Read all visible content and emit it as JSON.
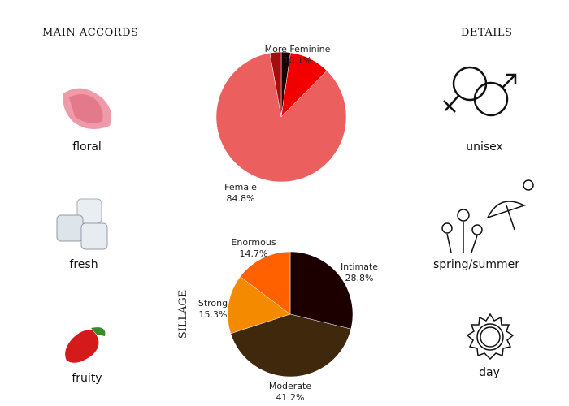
{
  "left": {
    "title": "MAIN ACCORDS",
    "accords": [
      {
        "label": "floral",
        "icon": "carnation-flower-icon"
      },
      {
        "label": "fresh",
        "icon": "ice-cubes-icon"
      },
      {
        "label": "fruity",
        "icon": "strawberry-icon"
      }
    ]
  },
  "right": {
    "title": "DETAILS",
    "details": [
      {
        "label": "unisex",
        "icon": "gender-symbols-icon"
      },
      {
        "label": "spring/summer",
        "icon": "flowers-umbrella-sun-icon"
      },
      {
        "label": "day",
        "icon": "sun-icon"
      }
    ]
  },
  "chart_data": [
    {
      "type": "pie",
      "title": "",
      "slices": [
        {
          "label": "",
          "value": 2.3,
          "text": "",
          "color": "#1a0000"
        },
        {
          "label": "More Feminine",
          "value": 10.1,
          "text": "10.1%",
          "color": "#f20000"
        },
        {
          "label": "Female",
          "value": 84.8,
          "text": "84.8%",
          "color": "#eb5f5f"
        },
        {
          "label": "",
          "value": 2.8,
          "text": "",
          "color": "#a30f0f"
        }
      ]
    },
    {
      "type": "pie",
      "title": "SILLAGE",
      "slices": [
        {
          "label": "Intimate",
          "value": 28.8,
          "text": "28.8%",
          "color": "#1c0000"
        },
        {
          "label": "Moderate",
          "value": 41.2,
          "text": "41.2%",
          "color": "#40280d"
        },
        {
          "label": "Strong",
          "value": 15.3,
          "text": "15.3%",
          "color": "#f48a00"
        },
        {
          "label": "Enormous",
          "value": 14.7,
          "text": "14.7%",
          "color": "#ff6000"
        }
      ]
    }
  ]
}
